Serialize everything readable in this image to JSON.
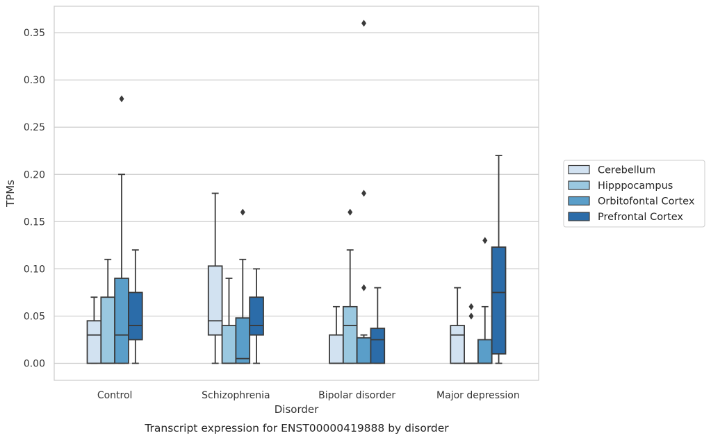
{
  "chart_data": {
    "type": "box",
    "caption": "Transcript expression for ENST00000419888 by disorder",
    "xlabel": "Disorder",
    "ylabel": "TPMs",
    "ylim": [
      -0.018,
      0.378
    ],
    "yticks": [
      0.0,
      0.05,
      0.1,
      0.15,
      0.2,
      0.25,
      0.3,
      0.35
    ],
    "ytick_labels": [
      "0.00",
      "0.05",
      "0.10",
      "0.15",
      "0.20",
      "0.25",
      "0.30",
      "0.35"
    ],
    "grid": "horizontal",
    "legend_position": "right",
    "categories": [
      "Control",
      "Schizophrenia",
      "Bipolar disorder",
      "Major depression"
    ],
    "series": [
      {
        "name": "Cerebellum",
        "color": "#d2e2f1",
        "boxes": [
          {
            "whislo": 0.0,
            "q1": 0.0,
            "med": 0.03,
            "q3": 0.045,
            "whishi": 0.07,
            "fliers": []
          },
          {
            "whislo": 0.0,
            "q1": 0.03,
            "med": 0.045,
            "q3": 0.103,
            "whishi": 0.18,
            "fliers": []
          },
          {
            "whislo": 0.0,
            "q1": 0.0,
            "med": 0.0,
            "q3": 0.03,
            "whishi": 0.06,
            "fliers": []
          },
          {
            "whislo": 0.0,
            "q1": 0.0,
            "med": 0.03,
            "q3": 0.04,
            "whishi": 0.08,
            "fliers": []
          }
        ]
      },
      {
        "name": "Hipppocampus",
        "color": "#9ac8e0",
        "boxes": [
          {
            "whislo": 0.0,
            "q1": 0.0,
            "med": 0.0,
            "q3": 0.07,
            "whishi": 0.11,
            "fliers": []
          },
          {
            "whislo": 0.0,
            "q1": 0.0,
            "med": 0.0,
            "q3": 0.04,
            "whishi": 0.09,
            "fliers": []
          },
          {
            "whislo": 0.0,
            "q1": 0.0,
            "med": 0.04,
            "q3": 0.06,
            "whishi": 0.12,
            "fliers": [
              0.16
            ]
          },
          {
            "whislo": 0.0,
            "q1": 0.0,
            "med": 0.0,
            "q3": 0.0,
            "whishi": 0.0,
            "fliers": [
              0.05,
              0.06
            ]
          }
        ]
      },
      {
        "name": "Orbitofontal Cortex",
        "color": "#5a9ec9",
        "boxes": [
          {
            "whislo": 0.0,
            "q1": 0.0,
            "med": 0.03,
            "q3": 0.09,
            "whishi": 0.2,
            "fliers": [
              0.28
            ]
          },
          {
            "whislo": 0.0,
            "q1": 0.0,
            "med": 0.005,
            "q3": 0.048,
            "whishi": 0.11,
            "fliers": [
              0.16
            ]
          },
          {
            "whislo": 0.0,
            "q1": 0.0,
            "med": 0.0,
            "q3": 0.027,
            "whishi": 0.03,
            "fliers": [
              0.08,
              0.18,
              0.36
            ]
          },
          {
            "whislo": 0.0,
            "q1": 0.0,
            "med": 0.0,
            "q3": 0.025,
            "whishi": 0.06,
            "fliers": [
              0.13
            ]
          }
        ]
      },
      {
        "name": "Prefrontal Cortex",
        "color": "#2b6ca9",
        "boxes": [
          {
            "whislo": 0.0,
            "q1": 0.025,
            "med": 0.04,
            "q3": 0.075,
            "whishi": 0.12,
            "fliers": []
          },
          {
            "whislo": 0.0,
            "q1": 0.03,
            "med": 0.04,
            "q3": 0.07,
            "whishi": 0.1,
            "fliers": []
          },
          {
            "whislo": 0.0,
            "q1": 0.0,
            "med": 0.025,
            "q3": 0.037,
            "whishi": 0.08,
            "fliers": []
          },
          {
            "whislo": 0.0,
            "q1": 0.01,
            "med": 0.075,
            "q3": 0.123,
            "whishi": 0.22,
            "fliers": []
          }
        ]
      }
    ]
  }
}
